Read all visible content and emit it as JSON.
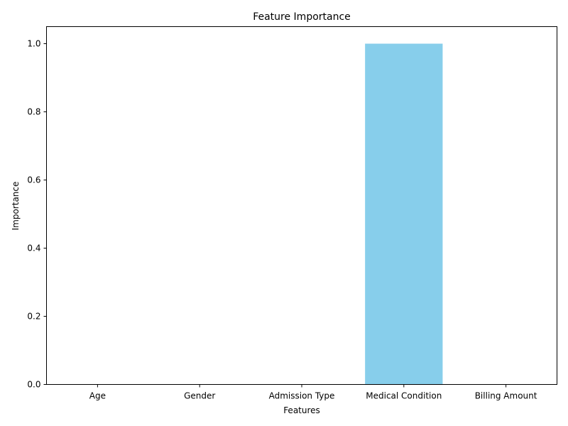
{
  "chart_data": {
    "type": "bar",
    "title": "Feature Importance",
    "xlabel": "Features",
    "ylabel": "Importance",
    "categories": [
      "Age",
      "Gender",
      "Admission Type",
      "Medical Condition",
      "Billing Amount"
    ],
    "values": [
      0.0,
      0.0,
      0.0,
      1.0,
      0.0
    ],
    "ylim": [
      0,
      1.05
    ],
    "yticks": [
      "0.0",
      "0.2",
      "0.4",
      "0.6",
      "0.8",
      "1.0"
    ],
    "bar_color": "#87ceeb",
    "grid": false,
    "legend": "none"
  }
}
